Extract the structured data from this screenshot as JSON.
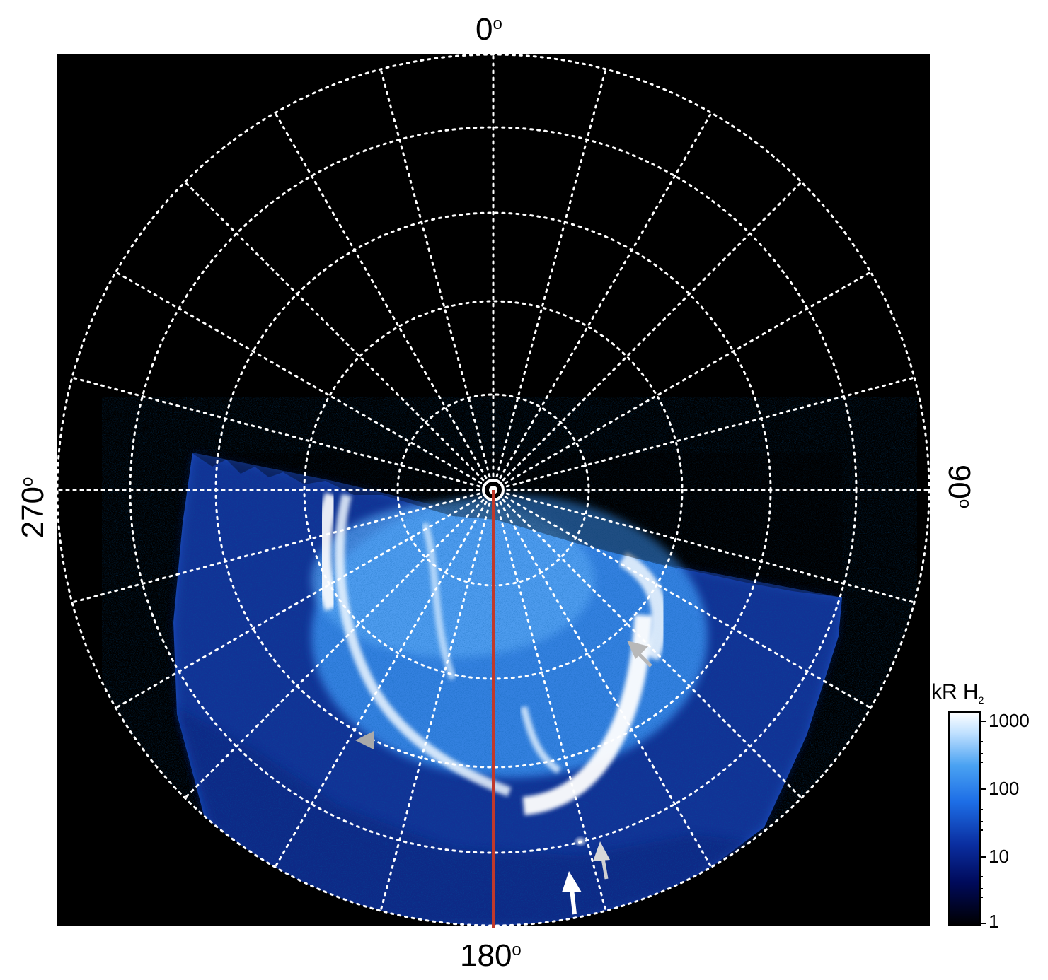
{
  "figure": {
    "axis_labels": {
      "top": "0",
      "bottom": "180",
      "left": "270",
      "right": "90",
      "degree_symbol": "o"
    },
    "colorbar": {
      "title_main": "kR H",
      "title_sub": "2",
      "ticks": [
        "1000",
        "100",
        "10",
        "1"
      ],
      "scale": "log",
      "range": [
        1,
        1000
      ],
      "colors": [
        "#000000",
        "#000a5a",
        "#0a2ea0",
        "#1d6ee6",
        "#4aa2f2",
        "#bfe0ff",
        "#ffffff"
      ]
    },
    "colors": {
      "background": "#000000",
      "grid": "#ffffff",
      "meridian_line": "#c0392b",
      "arrow_white": "#ffffff",
      "arrow_gray": "#b8b8b8"
    },
    "markers": [
      {
        "name": "gray-arrow-upper-right",
        "color": "gray"
      },
      {
        "name": "gray-triangle-left",
        "color": "gray"
      },
      {
        "name": "gray-arrow-lower",
        "color": "gray"
      },
      {
        "name": "white-arrow-lower",
        "color": "white"
      }
    ]
  }
}
